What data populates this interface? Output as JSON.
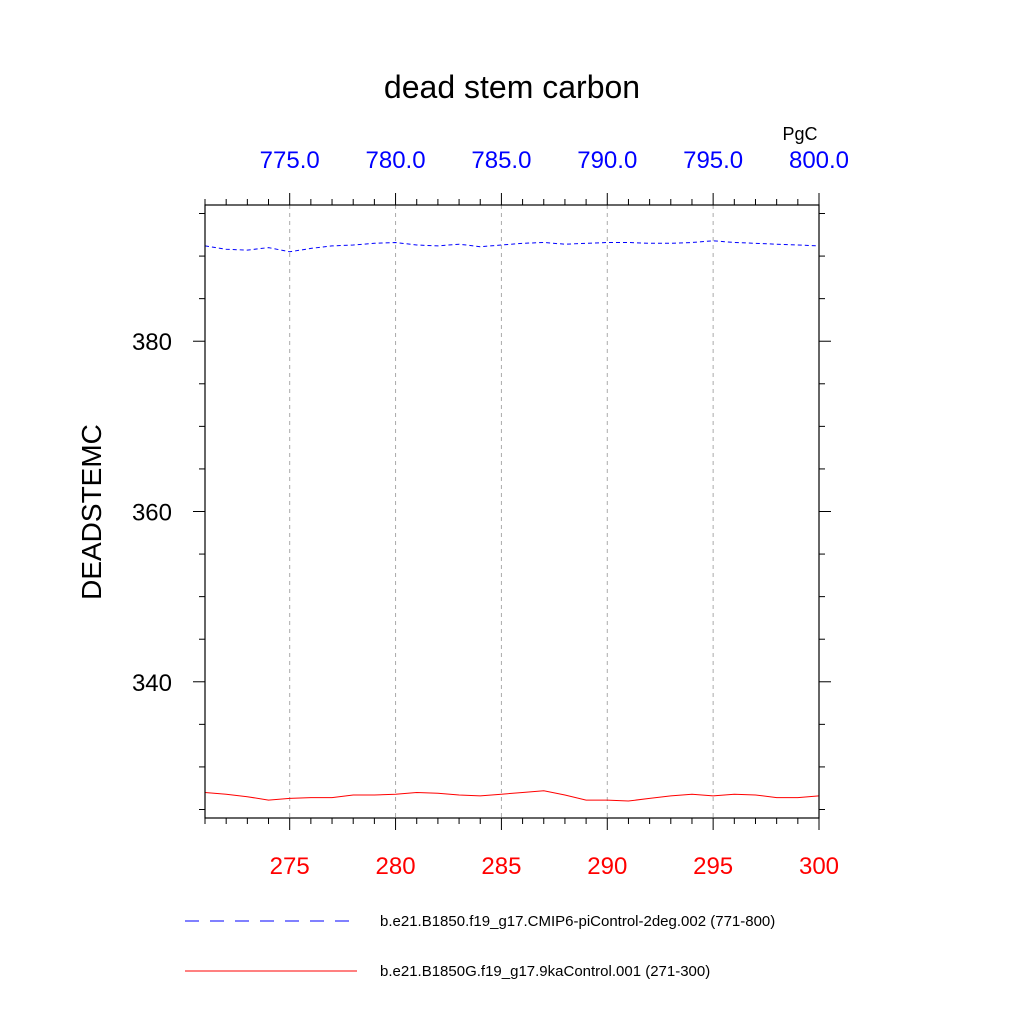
{
  "chart_data": {
    "type": "line",
    "title": "dead stem carbon",
    "units": "PgC",
    "ylabel": "DEADSTEMC",
    "ylim": [
      324,
      396
    ],
    "yticks": [
      340,
      360,
      380
    ],
    "y_minor_step": 5,
    "grid": "vertical dashed at labeled x ticks",
    "x_bottom": {
      "range": [
        271,
        300
      ],
      "ticks": [
        275,
        280,
        285,
        290,
        295,
        300
      ],
      "tick_labels": [
        "275",
        "280",
        "285",
        "290",
        "295",
        "300"
      ],
      "color": "#ff0000"
    },
    "x_top": {
      "range": [
        771,
        800
      ],
      "ticks": [
        775,
        780,
        785,
        790,
        795,
        800
      ],
      "tick_labels": [
        "775.0",
        "780.0",
        "785.0",
        "790.0",
        "795.0",
        "800.0"
      ],
      "color": "#0000ff"
    },
    "legend_position": "bottom",
    "series": [
      {
        "name": "b.e21.B1850.f19_g17.CMIP6-piControl-2deg.002 (771-800)",
        "axis": "top",
        "color": "#0000ff",
        "dash": "dashed",
        "x": [
          771,
          772,
          773,
          774,
          775,
          776,
          777,
          778,
          779,
          780,
          781,
          782,
          783,
          784,
          785,
          786,
          787,
          788,
          789,
          790,
          791,
          792,
          793,
          794,
          795,
          796,
          797,
          798,
          799,
          800
        ],
        "y": [
          391.2,
          390.8,
          390.7,
          391.0,
          390.5,
          390.9,
          391.2,
          391.3,
          391.5,
          391.6,
          391.3,
          391.2,
          391.4,
          391.1,
          391.3,
          391.5,
          391.6,
          391.4,
          391.5,
          391.6,
          391.6,
          391.5,
          391.5,
          391.6,
          391.8,
          391.6,
          391.5,
          391.4,
          391.3,
          391.2
        ]
      },
      {
        "name": "b.e21.B1850G.f19_g17.9kaControl.001 (271-300)",
        "axis": "bottom",
        "color": "#ff0000",
        "dash": "solid",
        "x": [
          271,
          272,
          273,
          274,
          275,
          276,
          277,
          278,
          279,
          280,
          281,
          282,
          283,
          284,
          285,
          286,
          287,
          288,
          289,
          290,
          291,
          292,
          293,
          294,
          295,
          296,
          297,
          298,
          299,
          300
        ],
        "y": [
          327.0,
          326.8,
          326.5,
          326.1,
          326.3,
          326.4,
          326.4,
          326.7,
          326.7,
          326.8,
          327.0,
          326.9,
          326.7,
          326.6,
          326.8,
          327.0,
          327.2,
          326.7,
          326.1,
          326.1,
          326.0,
          326.3,
          326.6,
          326.8,
          326.6,
          326.8,
          326.7,
          326.4,
          326.4,
          326.6
        ]
      }
    ]
  }
}
